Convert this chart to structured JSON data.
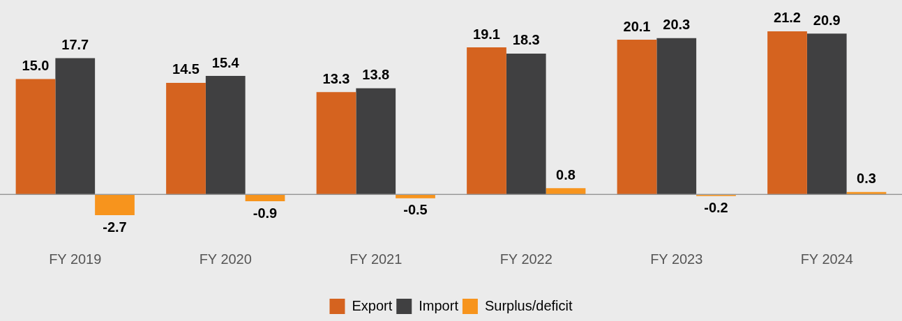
{
  "chart_data": {
    "type": "bar",
    "categories": [
      "FY 2019",
      "FY 2020",
      "FY 2021",
      "FY 2022",
      "FY 2023",
      "FY 2024"
    ],
    "series": [
      {
        "name": "Export",
        "color": "#d5631f",
        "values": [
          15.0,
          14.5,
          13.3,
          19.1,
          20.1,
          21.2
        ],
        "value_labels": [
          "15.0",
          "14.5",
          "13.3",
          "19.1",
          "20.1",
          "21.2"
        ]
      },
      {
        "name": "Import",
        "color": "#404041",
        "values": [
          17.7,
          15.4,
          13.8,
          18.3,
          20.3,
          20.9
        ],
        "value_labels": [
          "17.7",
          "15.4",
          "13.8",
          "18.3",
          "20.3",
          "20.9"
        ]
      },
      {
        "name": "Surplus/deficit",
        "color": "#f7941d",
        "values": [
          -2.7,
          -0.9,
          -0.5,
          0.8,
          -0.2,
          0.3
        ],
        "value_labels": [
          "-2.7",
          "-0.9",
          "-0.5",
          "0.8",
          "-0.2",
          "0.3"
        ]
      }
    ],
    "legend": "bottom",
    "grid": false
  }
}
